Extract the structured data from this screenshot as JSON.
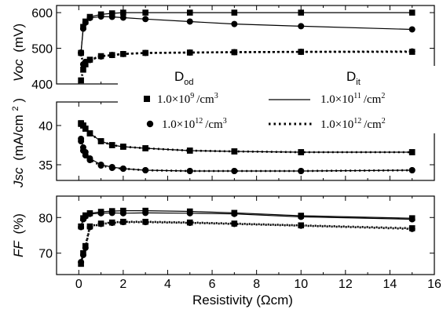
{
  "chart_data": {
    "type": "line",
    "xlabel": "Resistivity (Ωcm)",
    "xlim": [
      -1,
      16
    ],
    "xticks": [
      0,
      2,
      4,
      6,
      8,
      10,
      12,
      14,
      16
    ],
    "x": [
      0,
      0.1,
      0.2,
      0.3,
      0.5,
      1,
      1.5,
      2,
      3,
      5,
      7,
      10,
      15
    ],
    "legend": {
      "dod_header": "D",
      "dod_sub": "od",
      "dit_header": "D",
      "dit_sub": "it",
      "square_label_a": "1.0×10",
      "square_exp": "9",
      "square_label_b": "/cm",
      "square_unit_exp": "3",
      "circle_label_a": "1.0×10",
      "circle_exp": "12",
      "circle_label_b": "/cm",
      "circle_unit_exp": "3",
      "solid_label_a": "1.0×10",
      "solid_exp": "11",
      "solid_label_b": "/cm",
      "solid_unit_exp": "2",
      "dotted_label_a": "1.0×10",
      "dotted_exp": "12",
      "dotted_label_b": "/cm",
      "dotted_unit_exp": "2"
    },
    "panels": [
      {
        "ylabel_main": "Voc",
        "ylabel_unit": "(mV)",
        "ylim": [
          400,
          620
        ],
        "yticks": [
          400,
          500,
          600
        ],
        "series": [
          {
            "marker": "square",
            "line": "solid",
            "values": [
              null,
              487,
              560,
              575,
              588,
              595,
              598,
              600,
              600,
              600,
              600,
              600,
              600
            ]
          },
          {
            "marker": "circle",
            "line": "solid",
            "values": [
              null,
              488,
              555,
              572,
              585,
              589,
              588,
              586,
              582,
              575,
              568,
              562,
              553
            ]
          },
          {
            "marker": "square",
            "line": "dotted",
            "values": [
              null,
              410,
              440,
              455,
              468,
              478,
              481,
              484,
              487,
              488,
              489,
              490,
              490
            ]
          },
          {
            "marker": "circle",
            "line": "dotted",
            "values": [
              null,
              486,
              455,
              462,
              467,
              477,
              481,
              484,
              487,
              488,
              489,
              490,
              491
            ]
          }
        ]
      },
      {
        "ylabel_main": "Jsc",
        "ylabel_unit": "(mA/cm",
        "ylabel_unit_exp": "2",
        "ylabel_unit_close": ")",
        "ylim": [
          33,
          43
        ],
        "yticks": [
          35,
          40
        ],
        "series": [
          {
            "marker": "square",
            "line": "solid",
            "values": [
              null,
              40.2,
              40.0,
              39.6,
              39.0,
              38.0,
              37.5,
              37.3,
              37.1,
              36.8,
              36.7,
              36.6,
              36.6
            ]
          },
          {
            "marker": "circle",
            "line": "solid",
            "values": [
              null,
              38.3,
              37.2,
              36.6,
              35.8,
              35.0,
              34.7,
              34.5,
              34.3,
              34.2,
              34.2,
              34.2,
              34.3
            ]
          },
          {
            "marker": "square",
            "line": "dotted",
            "values": [
              null,
              40.3,
              40.0,
              39.6,
              39.0,
              38.0,
              37.5,
              37.3,
              37.1,
              36.8,
              36.7,
              36.6,
              36.6
            ]
          },
          {
            "marker": "circle",
            "line": "dotted",
            "values": [
              null,
              38.0,
              36.8,
              36.2,
              35.6,
              34.9,
              34.6,
              34.5,
              34.3,
              34.2,
              34.2,
              34.2,
              34.3
            ]
          }
        ]
      },
      {
        "ylabel_main": "FF",
        "ylabel_unit": "(%)",
        "ylim": [
          64,
          86
        ],
        "yticks": [
          70,
          80
        ],
        "series": [
          {
            "marker": "square",
            "line": "solid",
            "values": [
              null,
              77.5,
              79.8,
              80.6,
              81.2,
              81.6,
              81.8,
              81.9,
              81.9,
              81.7,
              81.3,
              80.5,
              79.8
            ]
          },
          {
            "marker": "circle",
            "line": "solid",
            "values": [
              null,
              77.3,
              79.5,
              80.3,
              81.0,
              81.2,
              81.3,
              81.2,
              81.3,
              81.2,
              81.0,
              80.2,
              79.5
            ]
          },
          {
            "marker": "square",
            "line": "dotted",
            "values": [
              null,
              67.0,
              70.0,
              72.0,
              77.5,
              78.3,
              78.6,
              78.8,
              78.8,
              78.6,
              78.3,
              77.8,
              77.0
            ]
          },
          {
            "marker": "circle",
            "line": "dotted",
            "values": [
              null,
              67.5,
              69.5,
              71.5,
              77.3,
              78.2,
              78.5,
              78.7,
              78.7,
              78.5,
              78.2,
              77.7,
              76.8
            ]
          }
        ]
      }
    ]
  }
}
